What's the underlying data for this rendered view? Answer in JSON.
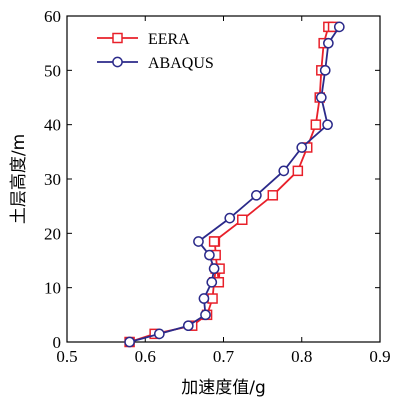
{
  "chart_data": {
    "type": "line",
    "xlabel": "加速度值/g",
    "ylabel": "土层高度/m",
    "xlim": [
      0.5,
      0.9
    ],
    "ylim": [
      0,
      60
    ],
    "xticks": [
      "0.5",
      "0.6",
      "0.7",
      "0.8",
      "0.9"
    ],
    "yticks": [
      "0",
      "10",
      "20",
      "30",
      "40",
      "50",
      "60"
    ],
    "grid": false,
    "legend": "top-left",
    "series": [
      {
        "name": "EERA",
        "color": "#e8202a",
        "marker": "square",
        "x": [
          0.58,
          0.612,
          0.66,
          0.679,
          0.686,
          0.688,
          0.69,
          0.695,
          0.694,
          0.69,
          0.689,
          0.688,
          0.724,
          0.763,
          0.795,
          0.807,
          0.818,
          0.823,
          0.825,
          0.828,
          0.834,
          0.84
        ],
        "y": [
          0,
          1.5,
          3,
          5,
          8,
          11,
          13.5,
          13.5,
          11,
          16,
          18.5,
          18.5,
          22.5,
          27,
          31.5,
          35.8,
          40,
          45,
          50,
          55,
          58,
          58
        ]
      },
      {
        "name": "ABAQUS",
        "color": "#2b2a8a",
        "marker": "circle",
        "x": [
          0.58,
          0.618,
          0.655,
          0.677,
          0.675,
          0.685,
          0.688,
          0.682,
          0.668,
          0.708,
          0.742,
          0.777,
          0.8,
          0.833,
          0.825,
          0.83,
          0.834,
          0.848
        ],
        "y": [
          0,
          1.5,
          3,
          5,
          8,
          11,
          13.5,
          16,
          18.5,
          22.8,
          27,
          31.5,
          35.8,
          40,
          45,
          50,
          55,
          58
        ]
      }
    ]
  }
}
